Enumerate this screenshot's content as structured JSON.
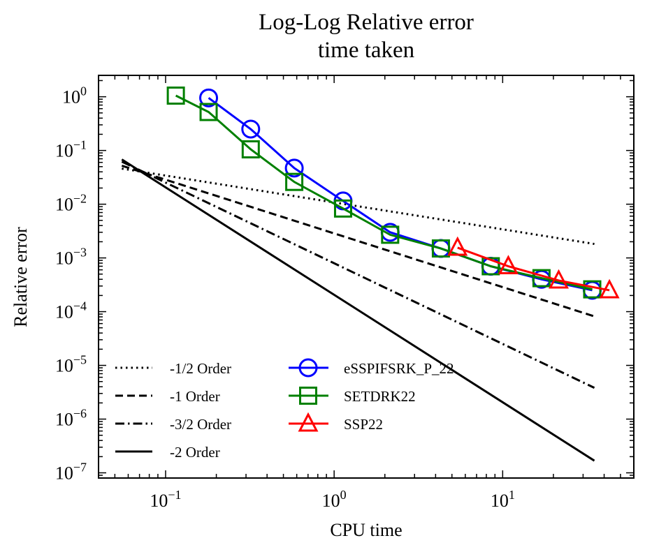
{
  "chart_data": {
    "type": "line",
    "title": "Log-Log Relative error",
    "subtitle": "time taken",
    "xlabel": "CPU time",
    "ylabel": "Relative error",
    "xscale": "log",
    "yscale": "log",
    "xlim": [
      0.04,
      60
    ],
    "ylim": [
      8e-08,
      2.5
    ],
    "x_ticks": [
      {
        "value": 0.1,
        "base": "10",
        "exp": "−1"
      },
      {
        "value": 1,
        "base": "10",
        "exp": "0"
      },
      {
        "value": 10,
        "base": "10",
        "exp": "1"
      }
    ],
    "y_ticks": [
      {
        "value": 1,
        "base": "10",
        "exp": "0"
      },
      {
        "value": 0.1,
        "base": "10",
        "exp": "−1"
      },
      {
        "value": 0.01,
        "base": "10",
        "exp": "−2"
      },
      {
        "value": 0.001,
        "base": "10",
        "exp": "−3"
      },
      {
        "value": 0.0001,
        "base": "10",
        "exp": "−4"
      },
      {
        "value": 1e-05,
        "base": "10",
        "exp": "−5"
      },
      {
        "value": 1e-06,
        "base": "10",
        "exp": "−6"
      },
      {
        "value": 1e-07,
        "base": "10",
        "exp": "−7"
      }
    ],
    "reference_lines": [
      {
        "name": "-1/2 Order",
        "style": "dotted",
        "color": "#000000",
        "x": [
          0.055,
          35
        ],
        "y": [
          0.046,
          0.00182
        ]
      },
      {
        "name": "-1 Order",
        "style": "dashed",
        "color": "#000000",
        "x": [
          0.055,
          35
        ],
        "y": [
          0.052,
          8.17e-05
        ]
      },
      {
        "name": "-3/2 Order",
        "style": "dashdot",
        "color": "#000000",
        "x": [
          0.055,
          35
        ],
        "y": [
          0.062,
          3.82e-06
        ]
      },
      {
        "name": "-2 Order",
        "style": "solid",
        "color": "#000000",
        "x": [
          0.055,
          35
        ],
        "y": [
          0.068,
          1.68e-07
        ]
      }
    ],
    "series": [
      {
        "name": "eSSPIFSRK_P_22",
        "marker": "circle",
        "color": "#0000ff",
        "x": [
          0.18,
          0.32,
          0.58,
          1.13,
          2.15,
          4.3,
          8.5,
          17,
          34
        ],
        "y": [
          0.95,
          0.25,
          0.047,
          0.0115,
          0.003,
          0.0015,
          0.0007,
          0.0004,
          0.00025
        ]
      },
      {
        "name": "SETDRK22",
        "marker": "square",
        "color": "#008000",
        "x": [
          0.115,
          0.18,
          0.32,
          0.58,
          1.13,
          2.15,
          4.3,
          8.5,
          17,
          34
        ],
        "y": [
          1.05,
          0.52,
          0.105,
          0.026,
          0.0083,
          0.0027,
          0.0015,
          0.0007,
          0.00042,
          0.00026
        ]
      },
      {
        "name": "SSP22",
        "marker": "triangle",
        "color": "#ff0000",
        "x": [
          5.4,
          10.8,
          21.5,
          43
        ],
        "y": [
          0.00155,
          0.0007,
          0.00038,
          0.00025
        ]
      }
    ],
    "legend": {
      "position": "bottom",
      "columns": 2
    }
  }
}
